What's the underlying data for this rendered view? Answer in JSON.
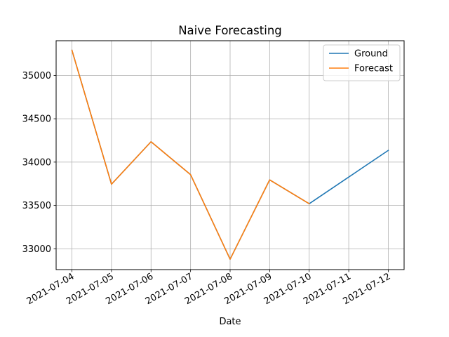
{
  "chart_data": {
    "type": "line",
    "title": "Naive Forecasting",
    "xlabel": "Date",
    "ylabel": "",
    "x": [
      "2021-07-04",
      "2021-07-05",
      "2021-07-06",
      "2021-07-07",
      "2021-07-08",
      "2021-07-09",
      "2021-07-10",
      "2021-07-11",
      "2021-07-12"
    ],
    "series": [
      {
        "name": "Ground",
        "color": "#1f77b4",
        "points": [
          {
            "x": "2021-07-04",
            "y": 35290
          },
          {
            "x": "2021-07-05",
            "y": 33745
          },
          {
            "x": "2021-07-06",
            "y": 34235
          },
          {
            "x": "2021-07-07",
            "y": 33855
          },
          {
            "x": "2021-07-08",
            "y": 32880
          },
          {
            "x": "2021-07-09",
            "y": 33795
          },
          {
            "x": "2021-07-10",
            "y": 33520
          },
          {
            "x": "2021-07-12",
            "y": 34135
          }
        ]
      },
      {
        "name": "Forecast",
        "color": "#ff7f0e",
        "points": [
          {
            "x": "2021-07-04",
            "y": 35290
          },
          {
            "x": "2021-07-05",
            "y": 33745
          },
          {
            "x": "2021-07-06",
            "y": 34235
          },
          {
            "x": "2021-07-07",
            "y": 33855
          },
          {
            "x": "2021-07-08",
            "y": 32880
          },
          {
            "x": "2021-07-09",
            "y": 33795
          },
          {
            "x": "2021-07-10",
            "y": 33520
          }
        ]
      }
    ],
    "yticks": [
      33000,
      33500,
      34000,
      34500,
      35000
    ],
    "ylim": [
      32760,
      35400
    ],
    "xlim": [
      "2021-07-03T14:24",
      "2021-07-12T09:36"
    ],
    "grid": true,
    "legend_position": "top-right"
  }
}
